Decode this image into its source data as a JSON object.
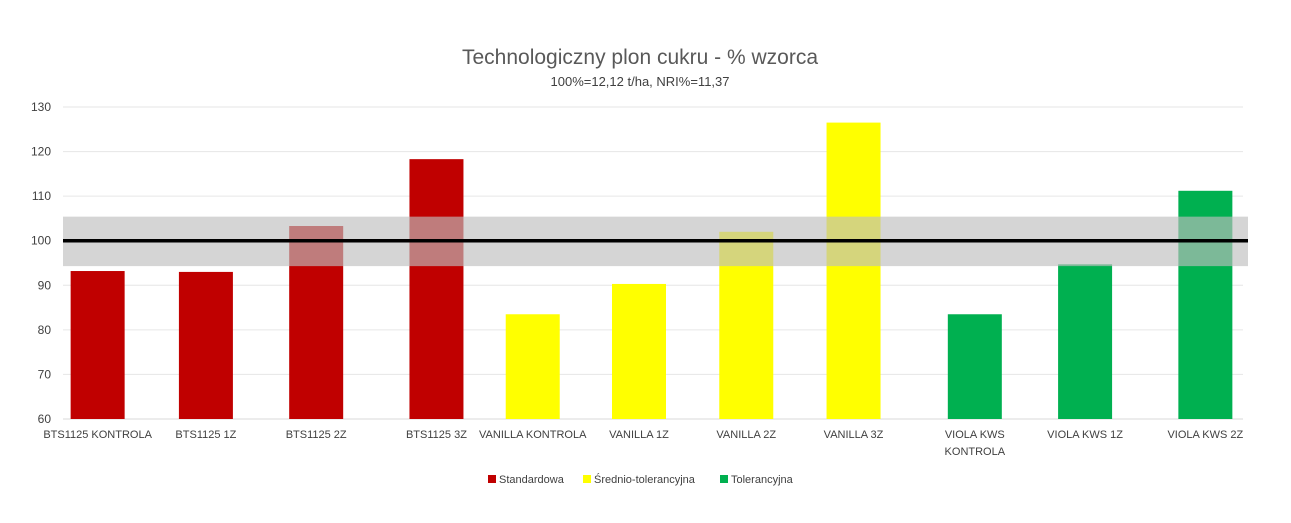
{
  "chart_data": {
    "type": "bar",
    "title": "Technologiczny plon cukru - % wzorca",
    "subtitle": "100%=12,12 t/ha, NRI%=11,37",
    "xlabel": "",
    "ylabel": "",
    "ylim": [
      60,
      130
    ],
    "yticks": [
      60,
      70,
      80,
      90,
      100,
      110,
      120,
      130
    ],
    "grid": true,
    "legend_position": "bottom",
    "reference_line": 100,
    "nri_band": [
      94.3,
      105.4
    ],
    "colors": {
      "Standardowa": "#c00000",
      "Średnio-tolerancyjna": "#ffff00",
      "Tolerancyjna": "#00b050",
      "band": "#bfbfbf",
      "reference": "#000000"
    },
    "categories": [
      [
        "BTS1125 KONTROLA"
      ],
      [
        "BTS1125 1Z"
      ],
      [
        "BTS1125 2Z"
      ],
      [
        "BTS1125 3Z"
      ],
      [
        "VANILLA KONTROLA"
      ],
      [
        "VANILLA 1Z"
      ],
      [
        "VANILLA 2Z"
      ],
      [
        "VANILLA 3Z"
      ],
      [
        "VIOLA KWS",
        "KONTROLA"
      ],
      [
        "VIOLA KWS 1Z"
      ],
      [
        "VIOLA KWS 2Z"
      ]
    ],
    "series": [
      {
        "name": "Standardowa",
        "values": [
          93.2,
          93.0,
          103.3,
          118.3,
          null,
          null,
          null,
          null,
          null,
          null,
          null
        ]
      },
      {
        "name": "Średnio-tolerancyjna",
        "values": [
          null,
          null,
          null,
          null,
          83.5,
          90.3,
          102.0,
          126.5,
          null,
          null,
          null
        ]
      },
      {
        "name": "Tolerancyjna",
        "values": [
          null,
          null,
          null,
          null,
          null,
          null,
          null,
          null,
          83.5,
          94.7,
          111.2
        ]
      }
    ]
  }
}
